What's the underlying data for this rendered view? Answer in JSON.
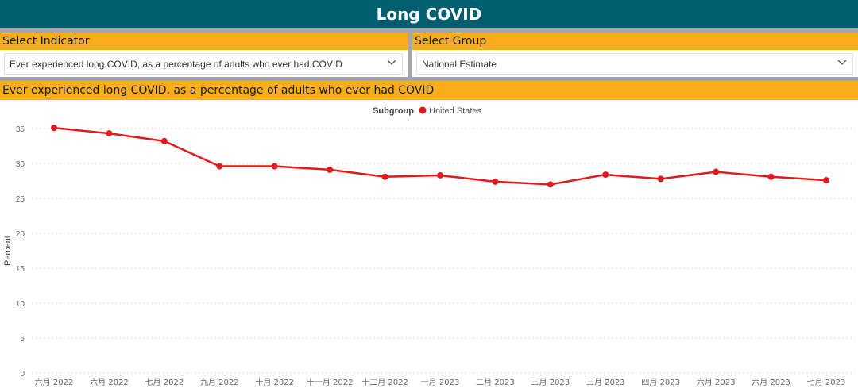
{
  "title": "Long COVID",
  "indicator_slicer": {
    "label": "Select Indicator",
    "value": "Ever experienced long COVID, as a percentage of adults who ever had COVID"
  },
  "group_slicer": {
    "label": "Select Group",
    "value": "National Estimate"
  },
  "chart_title": "Ever experienced long COVID, as a percentage of adults who ever had COVID",
  "colors": {
    "header_bg": "#005e6e",
    "accent": "#f9ad1b",
    "separator": "#a6a6a6",
    "series": "#e31a1c"
  },
  "chart_data": {
    "type": "line",
    "title": "Ever experienced long COVID, as a percentage of adults who ever had COVID",
    "legend_title": "Subgroup",
    "legend_position": "top-center",
    "ylabel": "Percent",
    "xlabel": "",
    "ylim": [
      0,
      35
    ],
    "yticks": [
      0,
      5,
      10,
      15,
      20,
      25,
      30,
      35
    ],
    "grid": true,
    "categories": [
      "六月 2022",
      "六月 2022",
      "七月 2022",
      "九月 2022",
      "十月 2022",
      "十一月 2022",
      "十二月 2022",
      "一月 2023",
      "二月 2023",
      "三月 2023",
      "三月 2023",
      "四月 2023",
      "六月 2023",
      "六月 2023",
      "七月 2023"
    ],
    "series": [
      {
        "name": "United States",
        "values": [
          35.1,
          34.3,
          33.2,
          29.6,
          29.6,
          29.1,
          28.1,
          28.3,
          27.4,
          27.0,
          28.4,
          27.8,
          28.8,
          28.1,
          27.6
        ]
      }
    ]
  }
}
